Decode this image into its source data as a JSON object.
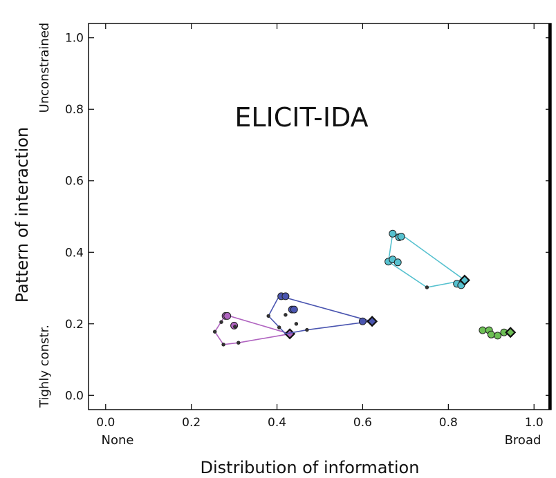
{
  "chart_data": {
    "type": "scatter",
    "title": "ELICIT-IDA",
    "xlabel": "Distribution of information",
    "ylabel": "Pattern of interaction",
    "xlim": [
      -0.04,
      1.04
    ],
    "ylim": [
      -0.04,
      1.04
    ],
    "xticks": [
      "0.0",
      "0.2",
      "0.4",
      "0.6",
      "0.8",
      "1.0"
    ],
    "yticks": [
      "0.0",
      "0.2",
      "0.4",
      "0.6",
      "0.8",
      "1.0"
    ],
    "x_end_labels": {
      "min": "None",
      "max": "Broad"
    },
    "y_end_labels": {
      "min": "Tighly constr.",
      "max": "Unconstrained"
    },
    "grid": false,
    "series": [
      {
        "color": "#b064c0",
        "hull": [
          [
            0.28,
            0.225
          ],
          [
            0.43,
            0.172
          ],
          [
            0.31,
            0.147
          ],
          [
            0.275,
            0.142
          ],
          [
            0.255,
            0.178
          ]
        ],
        "points": [
          [
            0.28,
            0.222,
            "l"
          ],
          [
            0.284,
            0.222,
            "l"
          ],
          [
            0.3,
            0.195,
            "l"
          ],
          [
            0.302,
            0.192,
            "s"
          ],
          [
            0.255,
            0.178,
            "s"
          ],
          [
            0.275,
            0.142,
            "s"
          ],
          [
            0.31,
            0.147,
            "s"
          ],
          [
            0.27,
            0.205,
            "s"
          ],
          [
            0.43,
            0.172,
            "s"
          ]
        ],
        "diamond": [
          0.43,
          0.172
        ]
      },
      {
        "color": "#4a55b0",
        "hull": [
          [
            0.405,
            0.278
          ],
          [
            0.62,
            0.207
          ],
          [
            0.47,
            0.183
          ],
          [
            0.42,
            0.172
          ],
          [
            0.38,
            0.222
          ]
        ],
        "points": [
          [
            0.41,
            0.277,
            "l"
          ],
          [
            0.42,
            0.277,
            "l"
          ],
          [
            0.435,
            0.24,
            "l"
          ],
          [
            0.44,
            0.24,
            "l"
          ],
          [
            0.6,
            0.207,
            "l"
          ],
          [
            0.38,
            0.222,
            "s"
          ],
          [
            0.42,
            0.225,
            "s"
          ],
          [
            0.405,
            0.19,
            "s"
          ],
          [
            0.47,
            0.183,
            "s"
          ],
          [
            0.445,
            0.2,
            "s"
          ]
        ],
        "diamond": [
          0.622,
          0.207
        ]
      },
      {
        "color": "#56c1cf",
        "hull": [
          [
            0.67,
            0.452
          ],
          [
            0.69,
            0.45
          ],
          [
            0.838,
            0.322
          ],
          [
            0.75,
            0.302
          ],
          [
            0.66,
            0.374
          ]
        ],
        "points": [
          [
            0.67,
            0.452,
            "l"
          ],
          [
            0.685,
            0.442,
            "l"
          ],
          [
            0.69,
            0.444,
            "l"
          ],
          [
            0.66,
            0.374,
            "l"
          ],
          [
            0.67,
            0.38,
            "l"
          ],
          [
            0.682,
            0.372,
            "l"
          ],
          [
            0.82,
            0.312,
            "l"
          ],
          [
            0.83,
            0.308,
            "l"
          ],
          [
            0.75,
            0.302,
            "s"
          ]
        ],
        "diamond": [
          0.838,
          0.322
        ]
      },
      {
        "color": "#6dbf55",
        "hull": [],
        "points": [
          [
            0.88,
            0.182,
            "l"
          ],
          [
            0.895,
            0.182,
            "l"
          ],
          [
            0.9,
            0.17,
            "l"
          ],
          [
            0.915,
            0.167,
            "l"
          ],
          [
            0.93,
            0.176,
            "l"
          ]
        ],
        "diamond": [
          0.945,
          0.176
        ]
      }
    ]
  }
}
